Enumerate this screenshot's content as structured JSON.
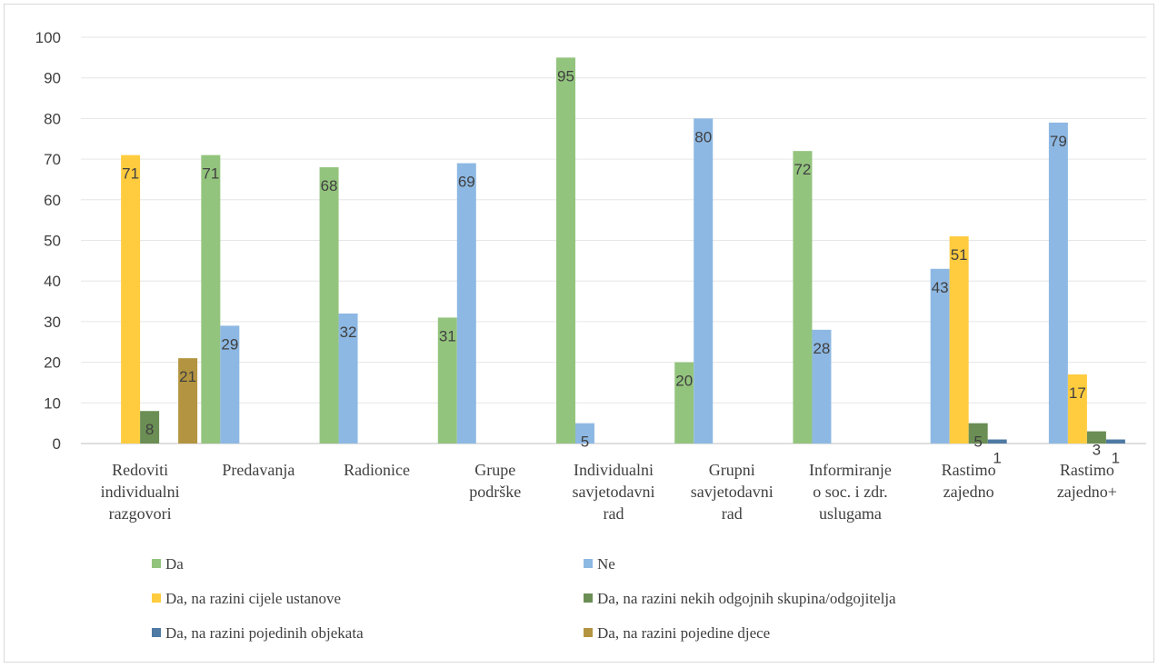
{
  "chart_data": {
    "type": "bar",
    "categories": [
      "Redoviti individualni razgovori",
      "Predavanja",
      "Radionice",
      "Grupe podrške",
      "Individualni savjetodavni rad",
      "Grupni savjetodavni rad",
      "Informiranje o soc. i zdr. uslugama",
      "Rastimo zajedno",
      "Rastimo zajedno+"
    ],
    "category_lines": [
      [
        "Redoviti",
        "individualni",
        "razgovori"
      ],
      [
        "Predavanja"
      ],
      [
        "Radionice"
      ],
      [
        "Grupe",
        "podrške"
      ],
      [
        "Individualni",
        "savjetodavni",
        "rad"
      ],
      [
        "Grupni",
        "savjetodavni",
        "rad"
      ],
      [
        "Informiranje",
        "o soc. i zdr.",
        "uslugama"
      ],
      [
        "Rastimo",
        "zajedno"
      ],
      [
        "Rastimo",
        "zajedno+"
      ]
    ],
    "series": [
      {
        "name": "Da",
        "color": "#93c47d",
        "values": [
          null,
          71,
          68,
          31,
          95,
          20,
          72,
          null,
          null
        ]
      },
      {
        "name": "Ne",
        "color": "#8db8e3",
        "values": [
          null,
          29,
          32,
          69,
          5,
          80,
          28,
          43,
          79
        ]
      },
      {
        "name": "Da, na razini cijele ustanove",
        "color": "#ffcc3f",
        "values": [
          71,
          null,
          null,
          null,
          null,
          null,
          null,
          51,
          17
        ]
      },
      {
        "name": "Da, na razini nekih odgojnih skupina/odgojitelja",
        "color": "#6b8e54",
        "values": [
          8,
          null,
          null,
          null,
          null,
          null,
          null,
          5,
          3
        ]
      },
      {
        "name": "Da, na razini pojedinih objekata",
        "color": "#4f7aa3",
        "values": [
          null,
          null,
          null,
          null,
          null,
          null,
          null,
          1,
          1
        ]
      },
      {
        "name": "Da, na razini pojedine djece",
        "color": "#b39440",
        "values": [
          21,
          null,
          null,
          null,
          null,
          null,
          null,
          null,
          null
        ]
      }
    ],
    "ylim": [
      0,
      100
    ],
    "yticks": [
      "0",
      "10",
      "20",
      "30",
      "40",
      "50",
      "60",
      "70",
      "80",
      "90",
      "100"
    ],
    "grid": true,
    "legend_position": "bottom",
    "title": "",
    "xlabel": "",
    "ylabel": ""
  }
}
